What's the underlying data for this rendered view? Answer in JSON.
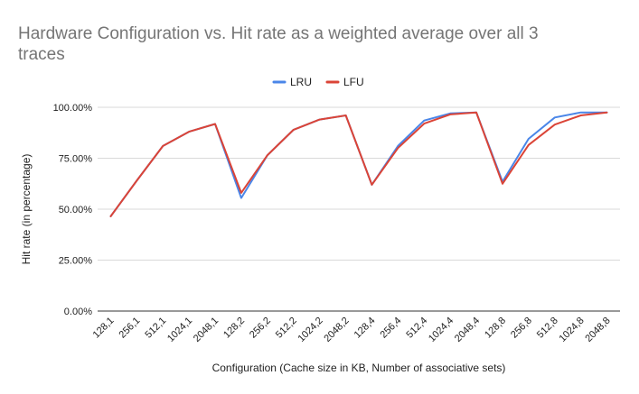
{
  "chart_data": {
    "type": "line",
    "title_line1": "Hardware Configuration vs. Hit rate as a weighted average over all 3",
    "title_line2": "traces",
    "xlabel": "Configuration (Cache size in KB, Number of associative sets)",
    "ylabel": "Hit rate (in percentage)",
    "ylim": [
      0,
      100
    ],
    "y_ticks": [
      {
        "value": 0,
        "label": "0.00%"
      },
      {
        "value": 25,
        "label": "25.00%"
      },
      {
        "value": 50,
        "label": "50.00%"
      },
      {
        "value": 75,
        "label": "75.00%"
      },
      {
        "value": 100,
        "label": "100.00%"
      }
    ],
    "grid": true,
    "legend_position": "top",
    "categories": [
      "128,1",
      "256,1",
      "512,1",
      "1024,1",
      "2048,1",
      "128,2",
      "256,2",
      "512,2",
      "1024,2",
      "2048,2",
      "128,4",
      "256,4",
      "512,4",
      "1024,4",
      "2048,4",
      "128,8",
      "256,8",
      "512,8",
      "1024,8",
      "2048,8"
    ],
    "series": [
      {
        "name": "LRU",
        "color": "#4a86e8",
        "values": [
          46.5,
          64.0,
          81.0,
          88.0,
          91.8,
          55.5,
          76.5,
          89.0,
          94.0,
          96.0,
          62.0,
          81.0,
          93.5,
          97.0,
          97.5,
          63.5,
          84.5,
          95.0,
          97.5,
          97.5
        ]
      },
      {
        "name": "LFU",
        "color": "#db4437",
        "values": [
          46.5,
          64.0,
          81.0,
          88.0,
          91.8,
          58.0,
          76.5,
          89.0,
          94.0,
          96.0,
          62.0,
          80.0,
          92.0,
          96.5,
          97.5,
          62.5,
          81.5,
          91.5,
          96.0,
          97.5
        ]
      }
    ]
  }
}
